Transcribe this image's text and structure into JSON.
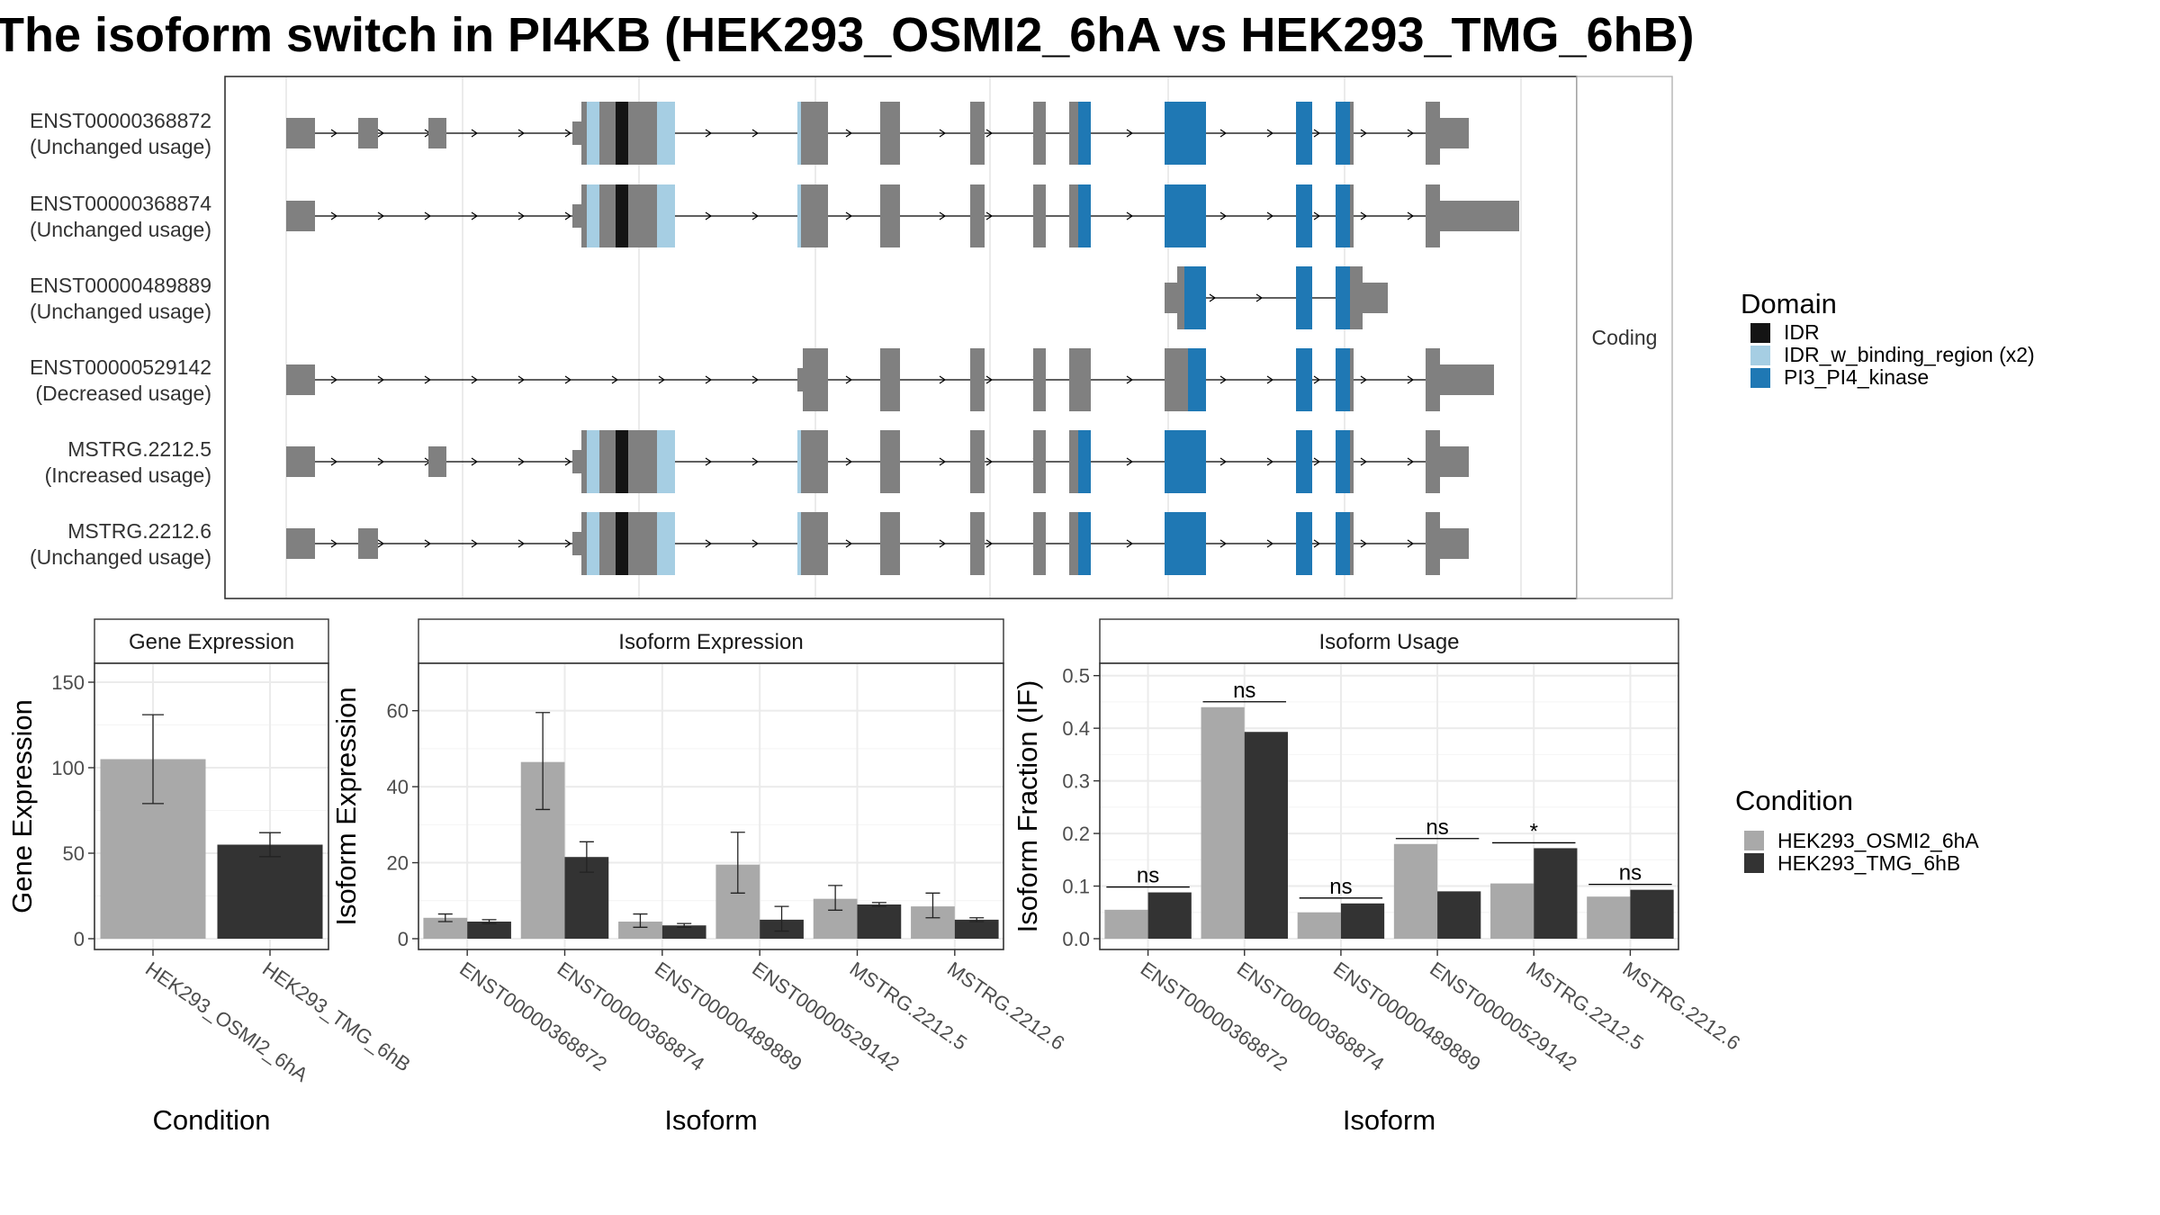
{
  "title": "The isoform switch in PI4KB (HEK293_OSMI2_6hA vs HEK293_TMG_6hB)",
  "colors": {
    "exon": "#808080",
    "IDR": "#141414",
    "IDR_w_binding_region (x2)": "#a6cee3",
    "PI3_PI4_kinase": "#1f78b4",
    "cond_A": "#a9a9a9",
    "cond_B": "#333333",
    "grid": "#ebebeb",
    "panel_border": "#333333",
    "strip_border": "#b3b3b3"
  },
  "structure": {
    "strip_label": "Coding",
    "legend_title": "Domain",
    "legend": [
      "IDR",
      "IDR_w_binding_region (x2)",
      "PI3_PI4_kinase"
    ],
    "transcripts": [
      {
        "id": "ENST00000368872",
        "status": "(Unchanged usage)"
      },
      {
        "id": "ENST00000368874",
        "status": "(Unchanged usage)"
      },
      {
        "id": "ENST00000489889",
        "status": "(Unchanged usage)"
      },
      {
        "id": "ENST00000529142",
        "status": "(Decreased usage)"
      },
      {
        "id": "MSTRG.2212.5",
        "status": "(Increased usage)"
      },
      {
        "id": "MSTRG.2212.6",
        "status": "(Unchanged usage)"
      }
    ]
  },
  "condition_legend": {
    "title": "Condition",
    "items": [
      "HEK293_OSMI2_6hA",
      "HEK293_TMG_6hB"
    ]
  },
  "chart_data": [
    {
      "type": "bar",
      "strip": "Gene Expression",
      "xlabel": "Condition",
      "ylabel": "Gene Expression",
      "ylim": [
        0,
        160
      ],
      "yticks": [
        0,
        50,
        100,
        150
      ],
      "categories": [
        "HEK293_OSMI2_6hA",
        "HEK293_TMG_6hB"
      ],
      "values": [
        105,
        55
      ],
      "error_low": [
        79,
        48
      ],
      "error_high": [
        131,
        62
      ]
    },
    {
      "type": "bar",
      "strip": "Isoform Expression",
      "xlabel": "Isoform",
      "ylabel": "Isoform Expression",
      "ylim": [
        0,
        72
      ],
      "yticks": [
        0,
        20,
        40,
        60
      ],
      "categories": [
        "ENST00000368872",
        "ENST00000368874",
        "ENST00000489889",
        "ENST00000529142",
        "MSTRG.2212.5",
        "MSTRG.2212.6"
      ],
      "series": [
        {
          "name": "HEK293_OSMI2_6hA",
          "values": [
            5.5,
            46.5,
            4.5,
            19.5,
            10.5,
            8.5
          ],
          "error_low": [
            4.5,
            34,
            3,
            12,
            7.5,
            5.5
          ],
          "error_high": [
            6.5,
            59.5,
            6.5,
            28,
            14,
            12
          ]
        },
        {
          "name": "HEK293_TMG_6hB",
          "values": [
            4.5,
            21.5,
            3.5,
            5,
            9,
            5
          ],
          "error_low": [
            4,
            17.5,
            3,
            2,
            8.5,
            4.5
          ],
          "error_high": [
            5,
            25.5,
            4,
            8.5,
            9.5,
            5.5
          ]
        }
      ]
    },
    {
      "type": "bar",
      "strip": "Isoform Usage",
      "xlabel": "Isoform",
      "ylabel": "Isoform Fraction (IF)",
      "ylim": [
        0,
        0.52
      ],
      "yticks": [
        "0.0",
        "0.1",
        "0.2",
        "0.3",
        "0.4",
        "0.5"
      ],
      "categories": [
        "ENST00000368872",
        "ENST00000368874",
        "ENST00000489889",
        "ENST00000529142",
        "MSTRG.2212.5",
        "MSTRG.2212.6"
      ],
      "series": [
        {
          "name": "HEK293_OSMI2_6hA",
          "values": [
            0.055,
            0.44,
            0.05,
            0.18,
            0.105,
            0.08
          ]
        },
        {
          "name": "HEK293_TMG_6hB",
          "values": [
            0.088,
            0.393,
            0.067,
            0.09,
            0.172,
            0.093
          ]
        }
      ],
      "significance": [
        "ns",
        "ns",
        "ns",
        "ns",
        "*",
        "ns"
      ]
    }
  ]
}
